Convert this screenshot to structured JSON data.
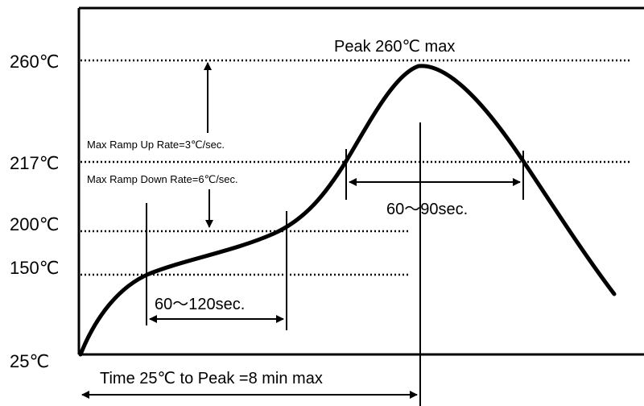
{
  "temperature_labels": {
    "t260": "260℃",
    "t217": "217℃",
    "t200": "200℃",
    "t150": "150℃",
    "t25": "25℃"
  },
  "annotations": {
    "peak": "Peak 260℃ max",
    "ramp_up": "Max Ramp Up Rate=3℃/sec.",
    "ramp_down": "Max Ramp Down Rate=6℃/sec.",
    "above_217_window": "60～90sec.",
    "soak_window": "60～120sec.",
    "total_time": "Time 25℃ to Peak =8 min max"
  },
  "colors": {
    "line": "#000000",
    "background": "#ffffff"
  }
}
